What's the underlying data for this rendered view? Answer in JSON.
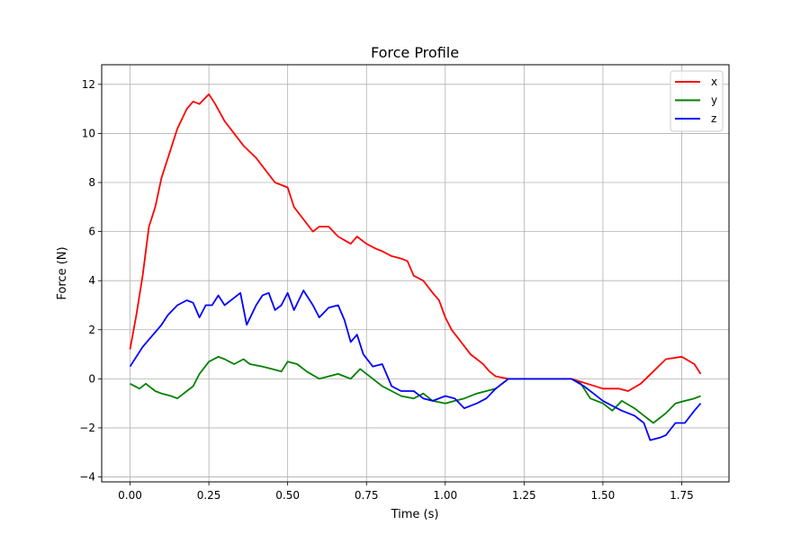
{
  "chart_data": {
    "type": "line",
    "title": "Force Profile",
    "xlabel": "Time (s)",
    "ylabel": "Force (N)",
    "xlim": [
      -0.09,
      1.9
    ],
    "ylim": [
      -4.2,
      12.8
    ],
    "xticks": [
      0.0,
      0.25,
      0.5,
      0.75,
      1.0,
      1.25,
      1.5,
      1.75
    ],
    "xtick_labels": [
      "0.00",
      "0.25",
      "0.50",
      "0.75",
      "1.00",
      "1.25",
      "1.50",
      "1.75"
    ],
    "yticks": [
      -4,
      -2,
      0,
      2,
      4,
      6,
      8,
      10,
      12
    ],
    "ytick_labels": [
      "−4",
      "−2",
      "0",
      "2",
      "4",
      "6",
      "8",
      "10",
      "12"
    ],
    "grid": true,
    "legend_position": "top-right",
    "series": [
      {
        "name": "x",
        "color": "#ff0000",
        "x": [
          0.0,
          0.02,
          0.04,
          0.06,
          0.08,
          0.1,
          0.12,
          0.15,
          0.18,
          0.2,
          0.22,
          0.25,
          0.27,
          0.3,
          0.33,
          0.36,
          0.4,
          0.43,
          0.46,
          0.5,
          0.52,
          0.55,
          0.58,
          0.6,
          0.63,
          0.66,
          0.7,
          0.72,
          0.75,
          0.78,
          0.8,
          0.83,
          0.86,
          0.88,
          0.9,
          0.93,
          0.96,
          0.98,
          1.0,
          1.02,
          1.05,
          1.08,
          1.1,
          1.12,
          1.14,
          1.16,
          1.2,
          1.25,
          1.3,
          1.35,
          1.4,
          1.45,
          1.5,
          1.55,
          1.58,
          1.62,
          1.66,
          1.7,
          1.75,
          1.79,
          1.81
        ],
        "y": [
          1.2,
          2.6,
          4.2,
          6.2,
          7.0,
          8.2,
          9.0,
          10.2,
          11.0,
          11.3,
          11.2,
          11.6,
          11.2,
          10.5,
          10.0,
          9.5,
          9.0,
          8.5,
          8.0,
          7.8,
          7.0,
          6.5,
          6.0,
          6.2,
          6.2,
          5.8,
          5.5,
          5.8,
          5.5,
          5.3,
          5.2,
          5.0,
          4.9,
          4.8,
          4.2,
          4.0,
          3.5,
          3.2,
          2.5,
          2.0,
          1.5,
          1.0,
          0.8,
          0.6,
          0.3,
          0.1,
          0.0,
          0.0,
          0.0,
          0.0,
          0.0,
          -0.2,
          -0.4,
          -0.4,
          -0.5,
          -0.2,
          0.3,
          0.8,
          0.9,
          0.6,
          0.2
        ]
      },
      {
        "name": "y",
        "color": "#008000",
        "x": [
          0.0,
          0.03,
          0.05,
          0.08,
          0.1,
          0.13,
          0.15,
          0.18,
          0.2,
          0.22,
          0.25,
          0.28,
          0.3,
          0.33,
          0.36,
          0.38,
          0.42,
          0.45,
          0.48,
          0.5,
          0.53,
          0.56,
          0.6,
          0.63,
          0.66,
          0.7,
          0.73,
          0.76,
          0.8,
          0.83,
          0.86,
          0.9,
          0.93,
          0.96,
          1.0,
          1.03,
          1.06,
          1.1,
          1.13,
          1.16,
          1.2,
          1.25,
          1.3,
          1.35,
          1.4,
          1.43,
          1.46,
          1.5,
          1.53,
          1.56,
          1.6,
          1.63,
          1.66,
          1.7,
          1.73,
          1.76,
          1.79,
          1.81
        ],
        "y": [
          -0.2,
          -0.4,
          -0.2,
          -0.5,
          -0.6,
          -0.7,
          -0.8,
          -0.5,
          -0.3,
          0.2,
          0.7,
          0.9,
          0.8,
          0.6,
          0.8,
          0.6,
          0.5,
          0.4,
          0.3,
          0.7,
          0.6,
          0.3,
          0.0,
          0.1,
          0.2,
          0.0,
          0.4,
          0.1,
          -0.3,
          -0.5,
          -0.7,
          -0.8,
          -0.6,
          -0.9,
          -1.0,
          -0.9,
          -0.8,
          -0.6,
          -0.5,
          -0.4,
          0.0,
          0.0,
          0.0,
          0.0,
          0.0,
          -0.2,
          -0.8,
          -1.0,
          -1.3,
          -0.9,
          -1.2,
          -1.5,
          -1.8,
          -1.4,
          -1.0,
          -0.9,
          -0.8,
          -0.7
        ]
      },
      {
        "name": "z",
        "color": "#0000ff",
        "x": [
          0.0,
          0.02,
          0.04,
          0.06,
          0.08,
          0.1,
          0.12,
          0.15,
          0.18,
          0.2,
          0.22,
          0.24,
          0.26,
          0.28,
          0.3,
          0.33,
          0.35,
          0.37,
          0.4,
          0.42,
          0.44,
          0.46,
          0.48,
          0.5,
          0.52,
          0.55,
          0.58,
          0.6,
          0.63,
          0.66,
          0.68,
          0.7,
          0.72,
          0.74,
          0.77,
          0.8,
          0.83,
          0.86,
          0.9,
          0.93,
          0.96,
          1.0,
          1.03,
          1.06,
          1.1,
          1.13,
          1.16,
          1.2,
          1.25,
          1.3,
          1.35,
          1.4,
          1.44,
          1.47,
          1.5,
          1.53,
          1.56,
          1.6,
          1.63,
          1.65,
          1.68,
          1.7,
          1.73,
          1.76,
          1.79,
          1.81
        ],
        "y": [
          0.5,
          0.9,
          1.3,
          1.6,
          1.9,
          2.2,
          2.6,
          3.0,
          3.2,
          3.1,
          2.5,
          3.0,
          3.0,
          3.4,
          3.0,
          3.3,
          3.5,
          2.2,
          3.0,
          3.4,
          3.5,
          2.8,
          3.0,
          3.5,
          2.8,
          3.6,
          3.0,
          2.5,
          2.9,
          3.0,
          2.4,
          1.5,
          1.8,
          1.0,
          0.5,
          0.6,
          -0.3,
          -0.5,
          -0.5,
          -0.8,
          -0.9,
          -0.7,
          -0.8,
          -1.2,
          -1.0,
          -0.8,
          -0.4,
          0.0,
          0.0,
          0.0,
          0.0,
          0.0,
          -0.3,
          -0.6,
          -0.9,
          -1.1,
          -1.3,
          -1.5,
          -1.8,
          -2.5,
          -2.4,
          -2.3,
          -1.8,
          -1.8,
          -1.3,
          -1.0
        ]
      }
    ]
  }
}
